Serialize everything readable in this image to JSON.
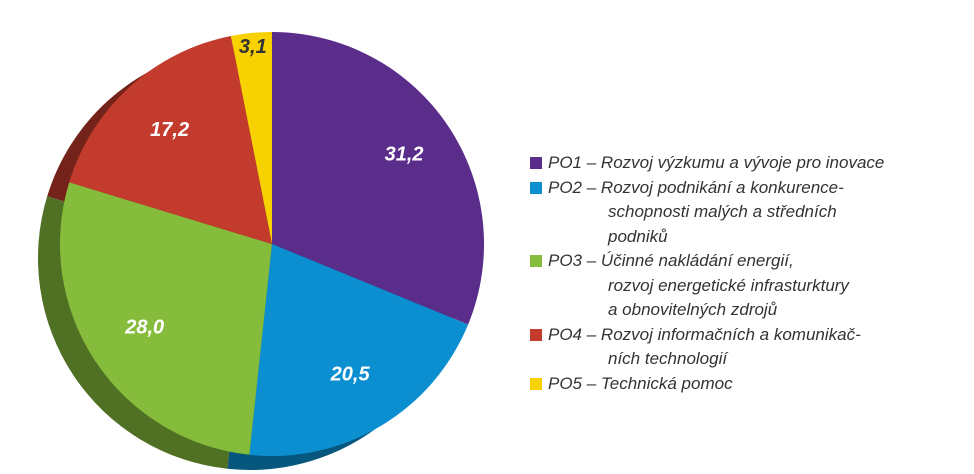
{
  "chart_data": {
    "type": "pie",
    "categories": [
      "PO1 – Rozvoj výzkumu a vývoje pro inovace",
      "PO2 – Rozvoj podnikání a konkurence-\nschopnosti malých a středních\npodniků",
      "PO3 – Účinné nakládání energií,\nrozvoj energetické infrasturktury\na obnovitelných zdrojů",
      "PO4 – Rozvoj informačních a komunikač-\nních technologií",
      "PO5 – Technická pomoc"
    ],
    "values": [
      31.2,
      20.5,
      28.0,
      17.2,
      3.1
    ],
    "value_labels": [
      "31,2",
      "20,5",
      "28,0",
      "17,2",
      "3,1"
    ],
    "colors": [
      "#5b2d8a",
      "#0b8fd0",
      "#86bc3b",
      "#c23b2c",
      "#f7d200"
    ]
  }
}
